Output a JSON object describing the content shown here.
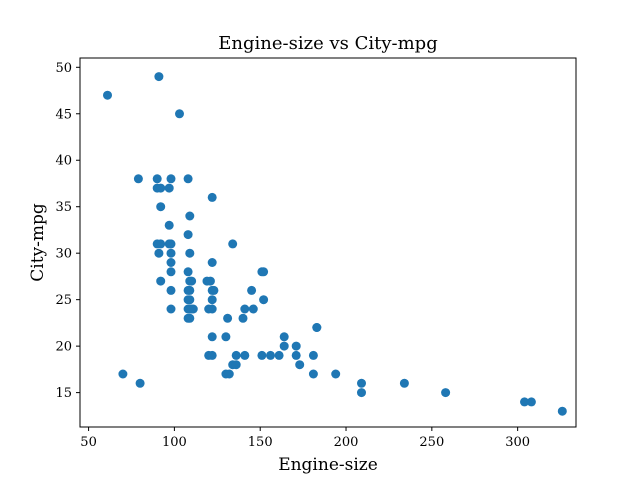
{
  "chart_data": {
    "type": "scatter",
    "title": "Engine-size vs City-mpg",
    "xlabel": "Engine-size",
    "ylabel": "City-mpg",
    "xlim": [
      45,
      334
    ],
    "ylim": [
      11.3,
      51.0
    ],
    "xticks": [
      50,
      100,
      150,
      200,
      250,
      300
    ],
    "yticks": [
      15,
      20,
      25,
      30,
      35,
      40,
      45,
      50
    ],
    "grid": false,
    "marker_color": "#1f77b4",
    "points": [
      [
        61,
        47
      ],
      [
        70,
        17
      ],
      [
        80,
        16
      ],
      [
        79,
        38
      ],
      [
        90,
        38
      ],
      [
        90,
        37
      ],
      [
        91,
        49
      ],
      [
        92,
        37
      ],
      [
        92,
        35
      ],
      [
        90,
        31
      ],
      [
        92,
        31
      ],
      [
        91,
        30
      ],
      [
        92,
        27
      ],
      [
        97,
        37
      ],
      [
        98,
        38
      ],
      [
        97,
        33
      ],
      [
        97,
        31
      ],
      [
        98,
        31
      ],
      [
        98,
        30
      ],
      [
        98,
        29
      ],
      [
        98,
        28
      ],
      [
        98,
        26
      ],
      [
        98,
        24
      ],
      [
        103,
        45
      ],
      [
        108,
        38
      ],
      [
        108,
        32
      ],
      [
        109,
        34
      ],
      [
        109,
        30
      ],
      [
        108,
        28
      ],
      [
        109,
        27
      ],
      [
        108,
        26
      ],
      [
        109,
        26
      ],
      [
        108,
        25
      ],
      [
        109,
        25
      ],
      [
        108,
        24
      ],
      [
        109,
        24
      ],
      [
        108,
        23
      ],
      [
        109,
        23
      ],
      [
        110,
        27
      ],
      [
        110,
        24
      ],
      [
        111,
        24
      ],
      [
        119,
        27
      ],
      [
        120,
        24
      ],
      [
        120,
        19
      ],
      [
        121,
        27
      ],
      [
        122,
        36
      ],
      [
        122,
        29
      ],
      [
        122,
        26
      ],
      [
        122,
        25
      ],
      [
        122,
        21
      ],
      [
        122,
        19
      ],
      [
        122,
        24
      ],
      [
        123,
        26
      ],
      [
        130,
        17
      ],
      [
        130,
        21
      ],
      [
        131,
        23
      ],
      [
        132,
        17
      ],
      [
        134,
        31
      ],
      [
        134,
        18
      ],
      [
        136,
        19
      ],
      [
        136,
        18
      ],
      [
        140,
        23
      ],
      [
        141,
        24
      ],
      [
        141,
        19
      ],
      [
        145,
        26
      ],
      [
        146,
        24
      ],
      [
        151,
        28
      ],
      [
        152,
        28
      ],
      [
        152,
        25
      ],
      [
        151,
        19
      ],
      [
        156,
        19
      ],
      [
        161,
        19
      ],
      [
        164,
        21
      ],
      [
        164,
        20
      ],
      [
        171,
        20
      ],
      [
        171,
        19
      ],
      [
        173,
        18
      ],
      [
        181,
        19
      ],
      [
        181,
        17
      ],
      [
        183,
        22
      ],
      [
        183,
        22
      ],
      [
        194,
        17
      ],
      [
        209,
        16
      ],
      [
        209,
        15
      ],
      [
        234,
        16
      ],
      [
        258,
        15
      ],
      [
        304,
        14
      ],
      [
        308,
        14
      ],
      [
        326,
        13
      ]
    ]
  }
}
